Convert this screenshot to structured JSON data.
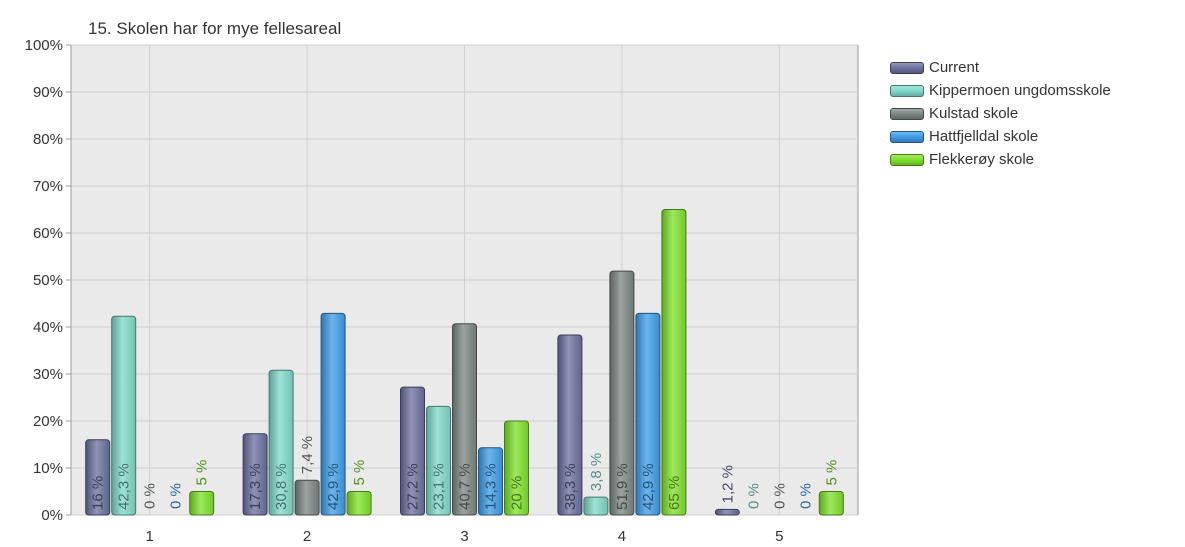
{
  "chart_data": {
    "type": "bar",
    "title": "15. Skolen har for mye fellesareal",
    "categories": [
      "1",
      "2",
      "3",
      "4",
      "5"
    ],
    "ylim": [
      0,
      100
    ],
    "y_ticks": [
      "0%",
      "10%",
      "20%",
      "30%",
      "40%",
      "50%",
      "60%",
      "70%",
      "80%",
      "90%",
      "100%"
    ],
    "grid": true,
    "legend_position": "right",
    "series": [
      {
        "name": "Current",
        "color": "#6a6f9e",
        "values": [
          16,
          17.3,
          27.2,
          38.3,
          1.2
        ],
        "labels": [
          "16 %",
          "17,3 %",
          "27,2 %",
          "38,3 %",
          "1,2 %"
        ]
      },
      {
        "name": "Kippermoen ungdomsskole",
        "color": "#7fd8c8",
        "values": [
          42.3,
          30.8,
          23.1,
          3.8,
          0
        ],
        "labels": [
          "42,3 %",
          "30,8 %",
          "23,1 %",
          "3,8 %",
          "0 %"
        ]
      },
      {
        "name": "Kulstad skole",
        "color": "#7a8580",
        "values": [
          0,
          7.4,
          40.7,
          51.9,
          0
        ],
        "labels": [
          "0 %",
          "7,4 %",
          "40,7 %",
          "51,9 %",
          "0 %"
        ]
      },
      {
        "name": "Hattfjelldal skole",
        "color": "#3d9be6",
        "values": [
          0,
          42.9,
          14.3,
          42.9,
          0
        ],
        "labels": [
          "0 %",
          "42,9 %",
          "14,3 %",
          "42,9 %",
          "0 %"
        ]
      },
      {
        "name": "Flekkerøy skole",
        "color": "#7ee02a",
        "values": [
          5,
          5,
          20,
          65,
          5
        ],
        "labels": [
          "5 %",
          "5 %",
          "20 %",
          "65 %",
          "5 %"
        ]
      }
    ]
  }
}
